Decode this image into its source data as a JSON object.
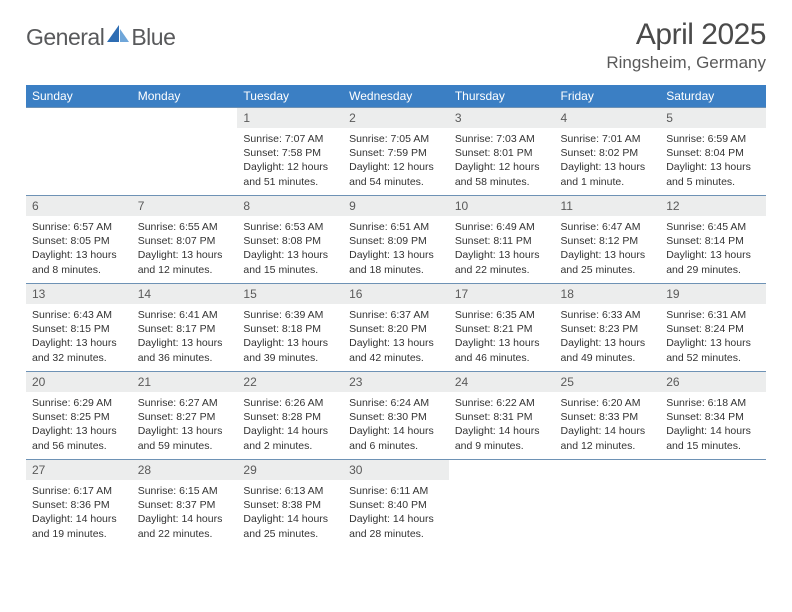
{
  "brand": {
    "word1": "General",
    "word2": "Blue"
  },
  "title": "April 2025",
  "location": "Ringsheim, Germany",
  "colors": {
    "header_bg": "#3b7fc4",
    "header_fg": "#ffffff",
    "daynum_bg": "#eceded",
    "cell_border": "#6e92b5",
    "text": "#333333",
    "logo_gray": "#58595b",
    "logo_blue": "#3b7fc4"
  },
  "weekdays": [
    "Sunday",
    "Monday",
    "Tuesday",
    "Wednesday",
    "Thursday",
    "Friday",
    "Saturday"
  ],
  "weeks": [
    [
      {
        "day": "",
        "sunrise": "",
        "sunset": "",
        "daylight": ""
      },
      {
        "day": "",
        "sunrise": "",
        "sunset": "",
        "daylight": ""
      },
      {
        "day": "1",
        "sunrise": "Sunrise: 7:07 AM",
        "sunset": "Sunset: 7:58 PM",
        "daylight": "Daylight: 12 hours and 51 minutes."
      },
      {
        "day": "2",
        "sunrise": "Sunrise: 7:05 AM",
        "sunset": "Sunset: 7:59 PM",
        "daylight": "Daylight: 12 hours and 54 minutes."
      },
      {
        "day": "3",
        "sunrise": "Sunrise: 7:03 AM",
        "sunset": "Sunset: 8:01 PM",
        "daylight": "Daylight: 12 hours and 58 minutes."
      },
      {
        "day": "4",
        "sunrise": "Sunrise: 7:01 AM",
        "sunset": "Sunset: 8:02 PM",
        "daylight": "Daylight: 13 hours and 1 minute."
      },
      {
        "day": "5",
        "sunrise": "Sunrise: 6:59 AM",
        "sunset": "Sunset: 8:04 PM",
        "daylight": "Daylight: 13 hours and 5 minutes."
      }
    ],
    [
      {
        "day": "6",
        "sunrise": "Sunrise: 6:57 AM",
        "sunset": "Sunset: 8:05 PM",
        "daylight": "Daylight: 13 hours and 8 minutes."
      },
      {
        "day": "7",
        "sunrise": "Sunrise: 6:55 AM",
        "sunset": "Sunset: 8:07 PM",
        "daylight": "Daylight: 13 hours and 12 minutes."
      },
      {
        "day": "8",
        "sunrise": "Sunrise: 6:53 AM",
        "sunset": "Sunset: 8:08 PM",
        "daylight": "Daylight: 13 hours and 15 minutes."
      },
      {
        "day": "9",
        "sunrise": "Sunrise: 6:51 AM",
        "sunset": "Sunset: 8:09 PM",
        "daylight": "Daylight: 13 hours and 18 minutes."
      },
      {
        "day": "10",
        "sunrise": "Sunrise: 6:49 AM",
        "sunset": "Sunset: 8:11 PM",
        "daylight": "Daylight: 13 hours and 22 minutes."
      },
      {
        "day": "11",
        "sunrise": "Sunrise: 6:47 AM",
        "sunset": "Sunset: 8:12 PM",
        "daylight": "Daylight: 13 hours and 25 minutes."
      },
      {
        "day": "12",
        "sunrise": "Sunrise: 6:45 AM",
        "sunset": "Sunset: 8:14 PM",
        "daylight": "Daylight: 13 hours and 29 minutes."
      }
    ],
    [
      {
        "day": "13",
        "sunrise": "Sunrise: 6:43 AM",
        "sunset": "Sunset: 8:15 PM",
        "daylight": "Daylight: 13 hours and 32 minutes."
      },
      {
        "day": "14",
        "sunrise": "Sunrise: 6:41 AM",
        "sunset": "Sunset: 8:17 PM",
        "daylight": "Daylight: 13 hours and 36 minutes."
      },
      {
        "day": "15",
        "sunrise": "Sunrise: 6:39 AM",
        "sunset": "Sunset: 8:18 PM",
        "daylight": "Daylight: 13 hours and 39 minutes."
      },
      {
        "day": "16",
        "sunrise": "Sunrise: 6:37 AM",
        "sunset": "Sunset: 8:20 PM",
        "daylight": "Daylight: 13 hours and 42 minutes."
      },
      {
        "day": "17",
        "sunrise": "Sunrise: 6:35 AM",
        "sunset": "Sunset: 8:21 PM",
        "daylight": "Daylight: 13 hours and 46 minutes."
      },
      {
        "day": "18",
        "sunrise": "Sunrise: 6:33 AM",
        "sunset": "Sunset: 8:23 PM",
        "daylight": "Daylight: 13 hours and 49 minutes."
      },
      {
        "day": "19",
        "sunrise": "Sunrise: 6:31 AM",
        "sunset": "Sunset: 8:24 PM",
        "daylight": "Daylight: 13 hours and 52 minutes."
      }
    ],
    [
      {
        "day": "20",
        "sunrise": "Sunrise: 6:29 AM",
        "sunset": "Sunset: 8:25 PM",
        "daylight": "Daylight: 13 hours and 56 minutes."
      },
      {
        "day": "21",
        "sunrise": "Sunrise: 6:27 AM",
        "sunset": "Sunset: 8:27 PM",
        "daylight": "Daylight: 13 hours and 59 minutes."
      },
      {
        "day": "22",
        "sunrise": "Sunrise: 6:26 AM",
        "sunset": "Sunset: 8:28 PM",
        "daylight": "Daylight: 14 hours and 2 minutes."
      },
      {
        "day": "23",
        "sunrise": "Sunrise: 6:24 AM",
        "sunset": "Sunset: 8:30 PM",
        "daylight": "Daylight: 14 hours and 6 minutes."
      },
      {
        "day": "24",
        "sunrise": "Sunrise: 6:22 AM",
        "sunset": "Sunset: 8:31 PM",
        "daylight": "Daylight: 14 hours and 9 minutes."
      },
      {
        "day": "25",
        "sunrise": "Sunrise: 6:20 AM",
        "sunset": "Sunset: 8:33 PM",
        "daylight": "Daylight: 14 hours and 12 minutes."
      },
      {
        "day": "26",
        "sunrise": "Sunrise: 6:18 AM",
        "sunset": "Sunset: 8:34 PM",
        "daylight": "Daylight: 14 hours and 15 minutes."
      }
    ],
    [
      {
        "day": "27",
        "sunrise": "Sunrise: 6:17 AM",
        "sunset": "Sunset: 8:36 PM",
        "daylight": "Daylight: 14 hours and 19 minutes."
      },
      {
        "day": "28",
        "sunrise": "Sunrise: 6:15 AM",
        "sunset": "Sunset: 8:37 PM",
        "daylight": "Daylight: 14 hours and 22 minutes."
      },
      {
        "day": "29",
        "sunrise": "Sunrise: 6:13 AM",
        "sunset": "Sunset: 8:38 PM",
        "daylight": "Daylight: 14 hours and 25 minutes."
      },
      {
        "day": "30",
        "sunrise": "Sunrise: 6:11 AM",
        "sunset": "Sunset: 8:40 PM",
        "daylight": "Daylight: 14 hours and 28 minutes."
      },
      {
        "day": "",
        "sunrise": "",
        "sunset": "",
        "daylight": ""
      },
      {
        "day": "",
        "sunrise": "",
        "sunset": "",
        "daylight": ""
      },
      {
        "day": "",
        "sunrise": "",
        "sunset": "",
        "daylight": ""
      }
    ]
  ]
}
